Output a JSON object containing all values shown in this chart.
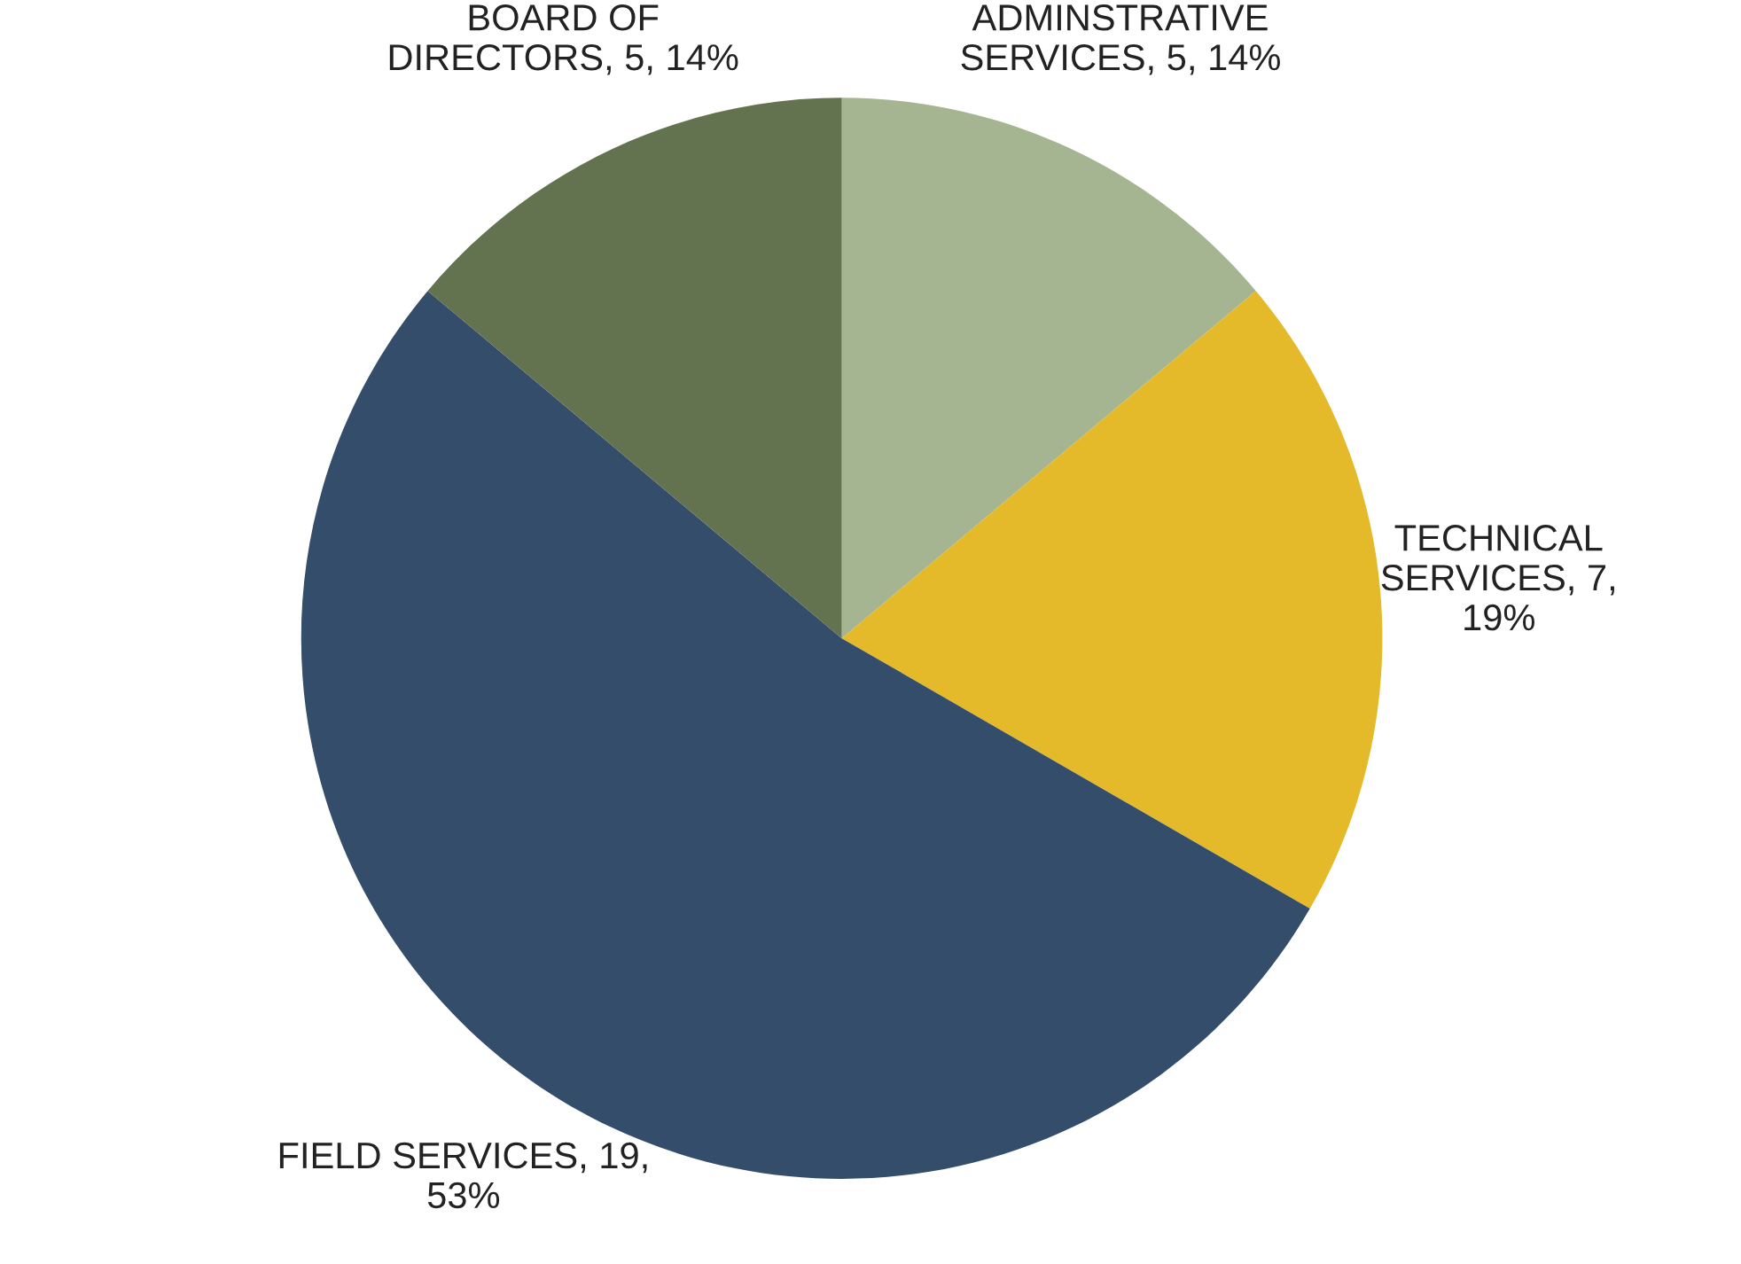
{
  "chart_data": {
    "type": "pie",
    "categories": [
      "ADMINSTRATIVE\nSERVICES",
      "TECHNICAL\nSERVICES",
      "FIELD SERVICES",
      "BOARD OF\nDIRECTORS"
    ],
    "values": [
      5,
      7,
      19,
      5
    ],
    "value_labels": [
      "5, 14%",
      "7,\n19%",
      "19,\n53%",
      "5, 14%"
    ],
    "colors": [
      "#a5b592",
      "#e4b92a",
      "#344d6b",
      "#63724f"
    ],
    "legend": false
  }
}
